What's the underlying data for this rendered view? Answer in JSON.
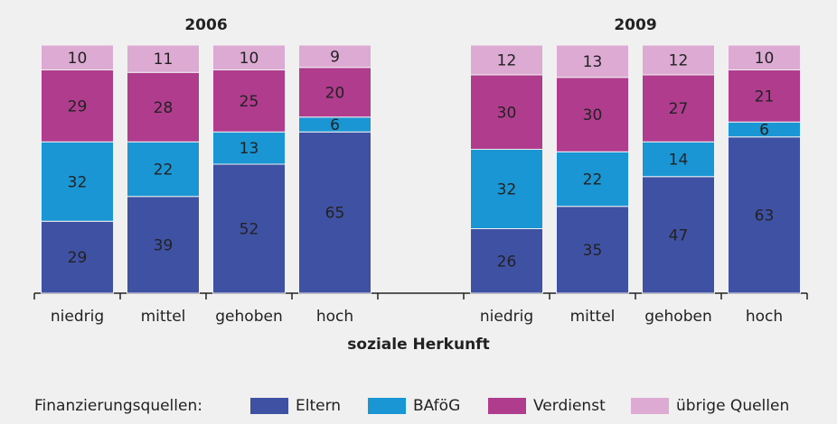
{
  "chart_data": {
    "type": "stacked_bar",
    "group_labels": [
      "2006",
      "2009"
    ],
    "categories": [
      "niedrig",
      "mittel",
      "gehoben",
      "hoch",
      "niedrig",
      "mittel",
      "gehoben",
      "hoch"
    ],
    "series": [
      {
        "name": "Eltern",
        "color": "#3f51a3",
        "values": [
          29,
          39,
          52,
          65,
          26,
          35,
          47,
          63
        ]
      },
      {
        "name": "BAföG",
        "color": "#1a96d4",
        "values": [
          32,
          22,
          13,
          6,
          32,
          22,
          14,
          6
        ]
      },
      {
        "name": "Verdienst",
        "color": "#b03c8e",
        "values": [
          29,
          28,
          25,
          20,
          30,
          30,
          27,
          21
        ]
      },
      {
        "name": "übrige Quellen",
        "color": "#dcaad2",
        "values": [
          10,
          11,
          10,
          9,
          12,
          13,
          12,
          10
        ]
      }
    ],
    "ylim": [
      0,
      100
    ],
    "x_label": "soziale Herkunft",
    "legend_title": "Finanzierungsquellen:"
  }
}
